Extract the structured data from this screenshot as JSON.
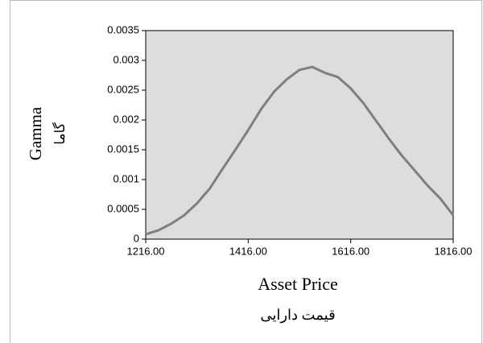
{
  "chart_data": {
    "type": "line",
    "ylabel": "Gamma",
    "ylabel_secondary": "گاما",
    "xlabel": "Asset Price",
    "xlabel_secondary": "قیمت دارایی",
    "x": [
      1216,
      1241,
      1266,
      1291,
      1316,
      1341,
      1366,
      1391,
      1416,
      1441,
      1466,
      1491,
      1516,
      1541,
      1566,
      1591,
      1616,
      1641,
      1666,
      1691,
      1716,
      1741,
      1766,
      1791,
      1816
    ],
    "series": [
      {
        "color": "#7f7f7f",
        "values": [
          8e-05,
          0.00015,
          0.00026,
          0.0004,
          0.0006,
          0.00085,
          0.00118,
          0.0015,
          0.00183,
          0.00218,
          0.00247,
          0.00268,
          0.00284,
          0.00289,
          0.00279,
          0.00272,
          0.00253,
          0.00228,
          0.00198,
          0.00168,
          0.0014,
          0.00115,
          0.0009,
          0.00068,
          0.0004
        ]
      }
    ],
    "xlim": [
      1216,
      1816
    ],
    "xticks": [
      {
        "value": 1216,
        "label": "1216.00"
      },
      {
        "value": 1416,
        "label": "1416.00"
      },
      {
        "value": 1616,
        "label": "1616.00"
      },
      {
        "value": 1816,
        "label": "1816.00"
      }
    ],
    "ylim": [
      0,
      0.0035
    ],
    "yticks": [
      0,
      0.0005,
      0.001,
      0.0015,
      0.002,
      0.0025,
      0.003,
      0.0035
    ],
    "plot_background": "#dddddd"
  }
}
